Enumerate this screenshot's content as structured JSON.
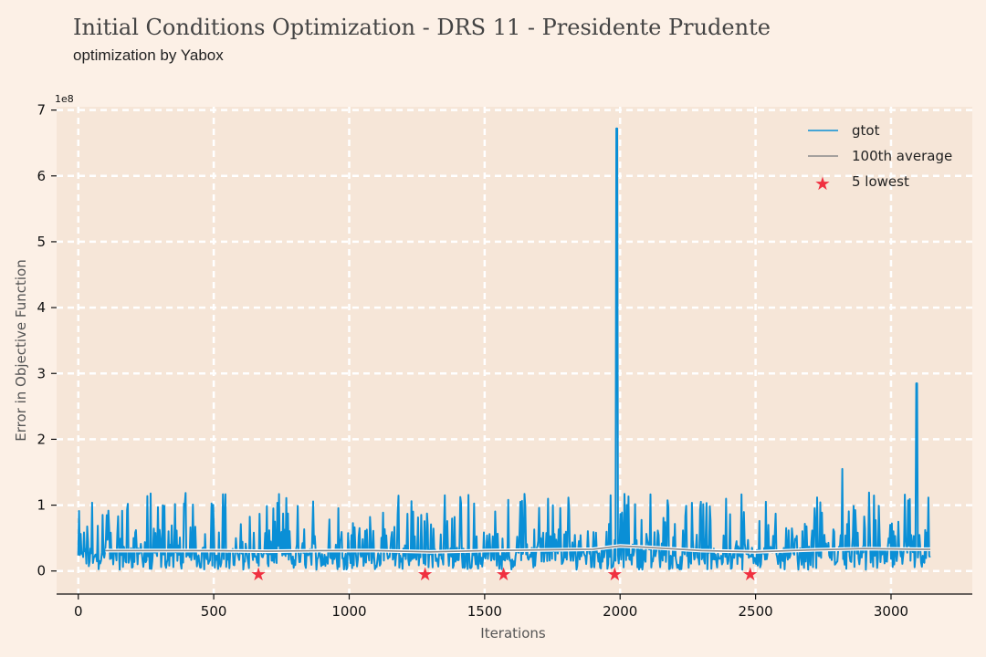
{
  "header": {
    "title": "Initial Conditions Optimization - DRS 11 - Presidente Prudente",
    "subtitle": "optimization by Yabox"
  },
  "chart_data": {
    "type": "line",
    "xlabel": "Iterations",
    "ylabel": "Error in Objective Function",
    "y_scale_label": "1e8",
    "xlim": [
      -80,
      3300
    ],
    "ylim": [
      -0.35,
      7.05
    ],
    "xticks": [
      0,
      500,
      1000,
      1500,
      2000,
      2500,
      3000
    ],
    "yticks": [
      0,
      1,
      2,
      3,
      4,
      5,
      6,
      7
    ],
    "grid": true,
    "legend_position": "top-right",
    "series": [
      {
        "name": "gtot",
        "color": "#0a8fd6",
        "description_x_range": [
          0,
          3145
        ],
        "baseline_range": [
          0.02,
          0.35
        ],
        "spike_range_max": 1.2,
        "peaks": [
          {
            "x": 1988,
            "y": 6.72
          },
          {
            "x": 3095,
            "y": 2.85
          },
          {
            "x": 2820,
            "y": 1.55
          }
        ]
      },
      {
        "name": "100th average",
        "color": "#8a8a8a",
        "x": [
          100,
          300,
          500,
          700,
          900,
          1100,
          1300,
          1500,
          1700,
          1900,
          2000,
          2100,
          2300,
          2500,
          2700,
          2900,
          3100,
          3145
        ],
        "values": [
          0.31,
          0.31,
          0.31,
          0.3,
          0.31,
          0.31,
          0.29,
          0.31,
          0.32,
          0.33,
          0.38,
          0.36,
          0.31,
          0.29,
          0.32,
          0.34,
          0.33,
          0.33
        ]
      },
      {
        "name": "5 lowest",
        "marker": "star",
        "color": "#f03040",
        "x": [
          665,
          1280,
          1570,
          1980,
          2480
        ],
        "values": [
          -0.03,
          -0.03,
          -0.03,
          -0.03,
          -0.03
        ]
      }
    ]
  }
}
